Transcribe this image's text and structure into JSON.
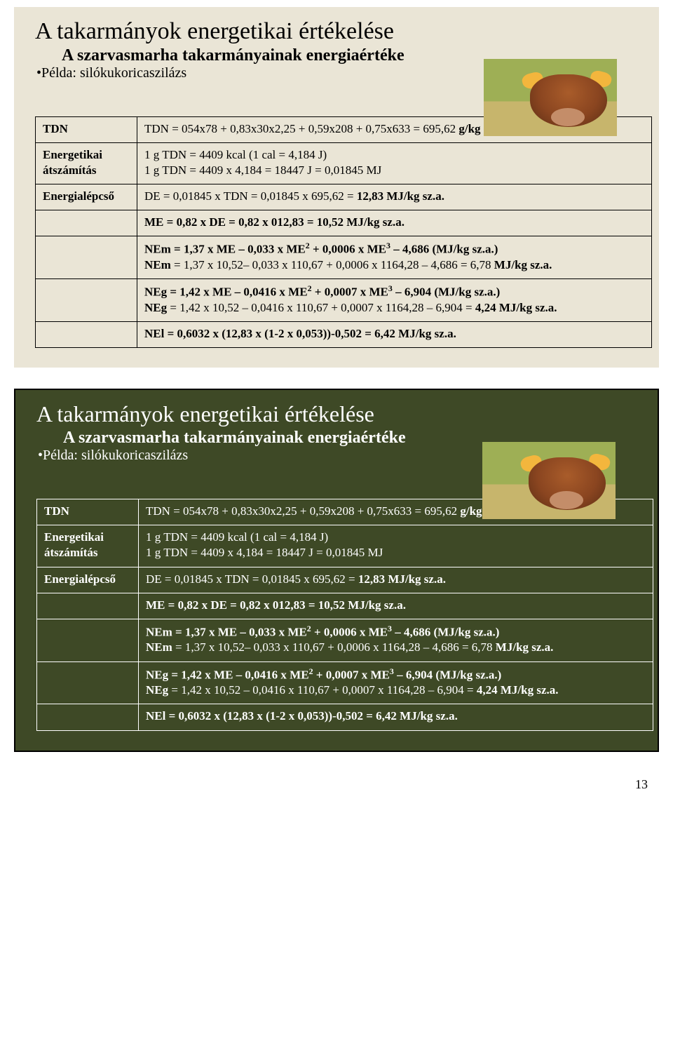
{
  "page_number": "13",
  "slide1": {
    "background": "#eae5d6",
    "title": "A takarmányok energetikai értékelése",
    "subtitle": "A szarvasmarha takarmányainak energiaértéke",
    "bullet": "•Példa: silókukoricaszilázs",
    "rows": {
      "tdn_label": "TDN",
      "tdn_val_a": "TDN = 054x78 + 0,83x30x2,25 + 0,59x208 + 0,75x633 = 695,62  ",
      "tdn_val_b": "g/kg sz.a.",
      "conv_label_a": "Energetikai",
      "conv_label_b": "átszámítás",
      "conv_val_a": "1 g TDN = 4409 kcal (1 cal = 4,184 J)",
      "conv_val_b": "1 g TDN = 4409 x 4,184 = 18447 J = 0,01845 MJ",
      "step_label": "Energialépcső",
      "de_a": "DE = 0,01845 x TDN = 0,01845 x 695,62 = ",
      "de_b": "12,83  MJ/kg sz.a.",
      "me_a": "ME = 0,82 x DE = 0,82 x 012,83 = 10,52  MJ/kg sz.a.",
      "nem1_a": "NEm = 1,37 x ME – 0,033 x ME",
      "nem1_b": " + 0,0006 x ME",
      "nem1_c": " – 4,686 (MJ/kg sz.a.)",
      "nem2_a": "NEm",
      "nem2_b": " = 1,37 x 10,52– 0,033 x 110,67 + 0,0006 x 1164,28 – 4,686 = 6,78 ",
      "nem2_c": "MJ/kg sz.a.",
      "neg1_a": "NEg = 1,42 x ME – 0,0416 x ME",
      "neg1_b": " + 0,0007 x ME",
      "neg1_c": " – 6,904 (MJ/kg sz.a.)",
      "neg2_a": "NEg",
      "neg2_b": " = 1,42 x 10,52 – 0,0416 x 110,67 + 0,0007 x 1164,28 – 6,904 = ",
      "neg2_c": "4,24  MJ/kg sz.a.",
      "nel_a": "NEl = 0,6032 x (12,83 x (1-2 x 0,053))-0,502 = 6,42  MJ/kg sz.a."
    }
  },
  "slide2": {
    "background": "#3e4926",
    "title": "A takarmányok energetikai értékelése",
    "subtitle": "A szarvasmarha takarmányainak energiaértéke",
    "bullet": "•Példa: silókukoricaszilázs",
    "rows": {
      "tdn_label": "TDN",
      "tdn_val_a": "TDN = 054x78 + 0,83x30x2,25 + 0,59x208 + 0,75x633 = 695,62  ",
      "tdn_val_b": "g/kg sz.a.",
      "conv_label_a": "Energetikai",
      "conv_label_b": "átszámítás",
      "conv_val_a": "1 g TDN = 4409 kcal (1 cal = 4,184 J)",
      "conv_val_b": "1 g TDN = 4409 x 4,184 = 18447 J = 0,01845 MJ",
      "step_label": "Energialépcső",
      "de_a": "DE = 0,01845 x TDN = 0,01845 x 695,62 = ",
      "de_b": "12,83  MJ/kg sz.a.",
      "me_a": "ME = 0,82 x DE = 0,82 x 012,83 = 10,52  MJ/kg sz.a.",
      "nem1_a": "NEm = 1,37 x ME – 0,033 x ME",
      "nem1_b": " + 0,0006 x ME",
      "nem1_c": " – 4,686 (MJ/kg sz.a.)",
      "nem2_a": "NEm",
      "nem2_b": " = 1,37 x 10,52– 0,033 x 110,67 + 0,0006 x 1164,28 – 4,686 = 6,78 ",
      "nem2_c": "MJ/kg sz.a.",
      "neg1_a": "NEg = 1,42 x ME – 0,0416 x ME",
      "neg1_b": " + 0,0007 x ME",
      "neg1_c": " – 6,904 (MJ/kg sz.a.)",
      "neg2_a": "NEg",
      "neg2_b": " = 1,42 x 10,52 – 0,0416 x 110,67 + 0,0007 x 1164,28 – 6,904 = ",
      "neg2_c": "4,24  MJ/kg sz.a.",
      "nel_a": "NEl = 0,6032 x (12,83 x (1-2 x 0,053))-0,502 = 6,42  MJ/kg sz.a."
    }
  }
}
